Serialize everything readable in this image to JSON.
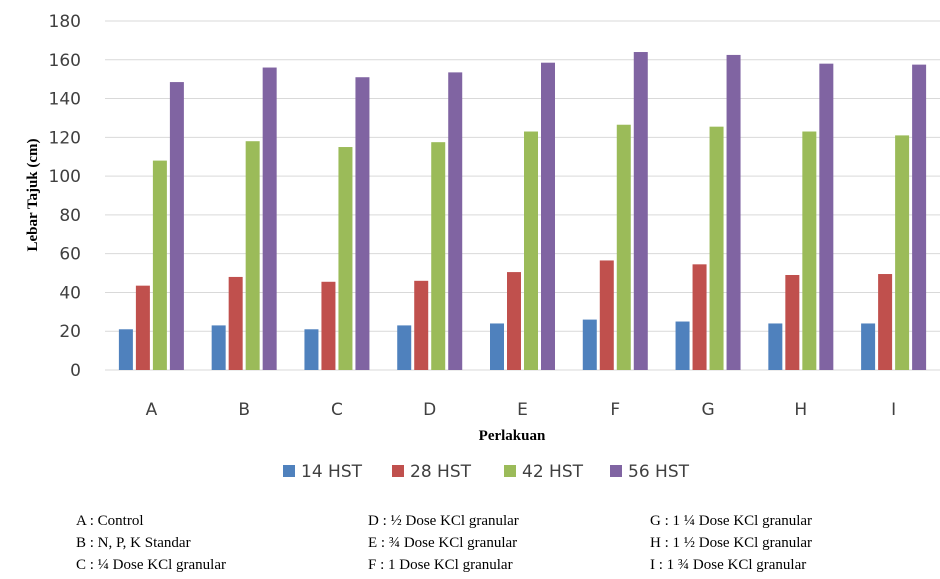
{
  "chart_data": {
    "type": "bar",
    "categories": [
      "A",
      "B",
      "C",
      "D",
      "E",
      "F",
      "G",
      "H",
      "I"
    ],
    "series": [
      {
        "name": "14 HST",
        "color": "#4f81bd",
        "values": [
          21,
          23,
          21,
          23,
          24,
          26,
          25,
          24,
          24
        ]
      },
      {
        "name": "28 HST",
        "color": "#c0504d",
        "values": [
          43.5,
          48,
          45.5,
          46,
          50.5,
          56.5,
          54.5,
          49,
          49.5
        ]
      },
      {
        "name": "42 HST",
        "color": "#9bbb59",
        "values": [
          108,
          118,
          115,
          117.5,
          123,
          126.5,
          125.5,
          123,
          121
        ]
      },
      {
        "name": "56 HST",
        "color": "#8064a2",
        "values": [
          148.5,
          156,
          151,
          153.5,
          158.5,
          164,
          162.5,
          158,
          157.5
        ]
      }
    ],
    "yticks": [
      0,
      20,
      40,
      60,
      80,
      100,
      120,
      140,
      160,
      180
    ],
    "ylim": [
      0,
      180
    ],
    "xlabel": "Perlakuan",
    "ylabel": "Lebar Tajuk (cm)",
    "grid": true,
    "legend_position": "bottom"
  },
  "notes": [
    [
      "A : Control",
      "B : N, P, K Standar",
      "C : ¼ Dose KCl granular"
    ],
    [
      "D : ½ Dose KCl granular",
      "E : ¾  Dose KCl granular",
      "F : 1 Dose KCl granular"
    ],
    [
      "G : 1 ¼ Dose KCl granular",
      "H : 1 ½ Dose KCl granular",
      "I : 1 ¾  Dose KCl granular"
    ]
  ]
}
